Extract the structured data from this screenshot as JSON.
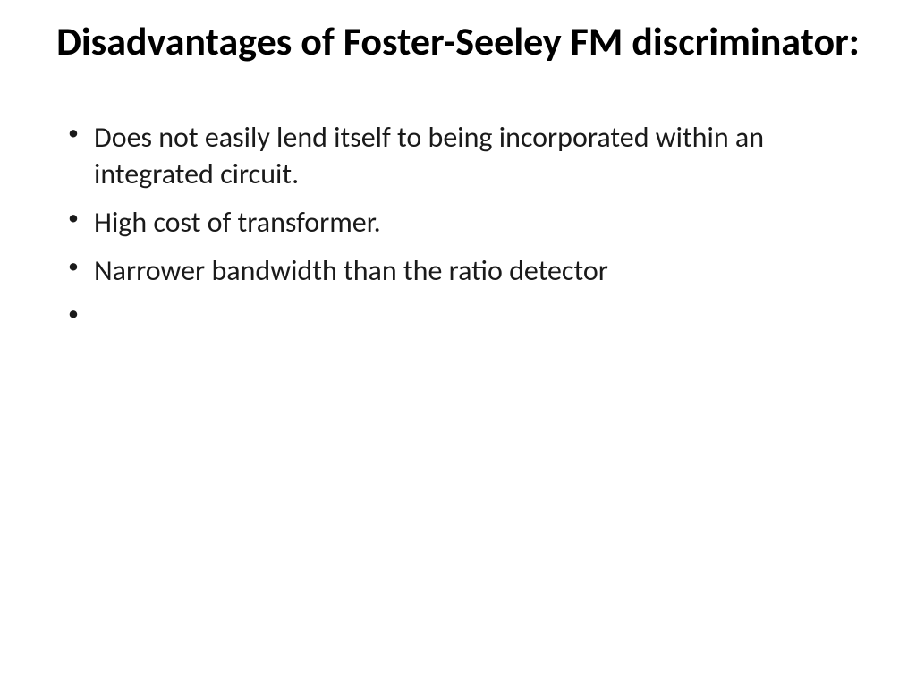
{
  "slide": {
    "title": "Disadvantages of Foster-Seeley FM discriminator:",
    "bullets": [
      "Does not easily lend itself to being incorporated within an integrated circuit.",
      "High cost of transformer.",
      "Narrower bandwidth than the ratio detector",
      ""
    ],
    "background_color": "#ffffff",
    "text_color": "#000000",
    "title_fontsize": 44,
    "body_fontsize": 32
  }
}
